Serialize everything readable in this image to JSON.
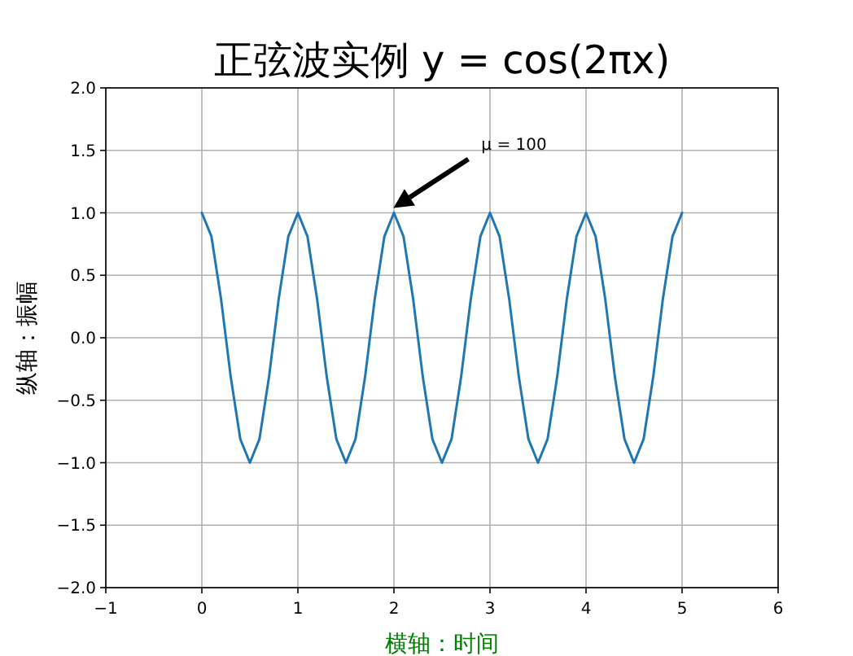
{
  "chart_data": {
    "type": "line",
    "title": "正弦波实例  y = cos(2πx)",
    "xlabel": "横轴：时间",
    "ylabel": "纵轴：振幅",
    "x": [
      0,
      0.1,
      0.2,
      0.3,
      0.4,
      0.5,
      0.6,
      0.7,
      0.8,
      0.9,
      1,
      1.1,
      1.2,
      1.3,
      1.4,
      1.5,
      1.6,
      1.7,
      1.8,
      1.9,
      2,
      2.1,
      2.2,
      2.3,
      2.4,
      2.5,
      2.6,
      2.7,
      2.8,
      2.9,
      3,
      3.1,
      3.2,
      3.3,
      3.4,
      3.5,
      3.6,
      3.7,
      3.8,
      3.9,
      4,
      4.1,
      4.2,
      4.3,
      4.4,
      4.5,
      4.6,
      4.7,
      4.8,
      4.9,
      5
    ],
    "series": [
      {
        "color": "#1f77b4",
        "values": [
          1,
          0.81,
          0.31,
          -0.31,
          -0.81,
          -1,
          -0.81,
          -0.31,
          0.31,
          0.81,
          1,
          0.81,
          0.31,
          -0.31,
          -0.81,
          -1,
          -0.81,
          -0.31,
          0.31,
          0.81,
          1,
          0.81,
          0.31,
          -0.31,
          -0.81,
          -1,
          -0.81,
          -0.31,
          0.31,
          0.81,
          1,
          0.81,
          0.31,
          -0.31,
          -0.81,
          -1,
          -0.81,
          -0.31,
          0.31,
          0.81,
          1,
          0.81,
          0.31,
          -0.31,
          -0.81,
          -1,
          -0.81,
          -0.31,
          0.31,
          0.81,
          1
        ]
      }
    ],
    "xlim": [
      -1,
      6
    ],
    "xticks": [
      -1,
      0,
      1,
      2,
      3,
      4,
      5,
      6
    ],
    "ylim": [
      -2,
      2
    ],
    "yticks": [
      {
        "value": -2,
        "label": "−2.0"
      },
      -1.5,
      {
        "value": -1,
        "label": "−1.0"
      },
      -0.5,
      {
        "value": 0,
        "label": "0.0"
      },
      0.5,
      {
        "value": 1,
        "label": "1.0"
      },
      1.5,
      {
        "value": 2,
        "label": "2.0"
      }
    ],
    "grid": true,
    "annotations": [
      "μ = 100"
    ]
  }
}
